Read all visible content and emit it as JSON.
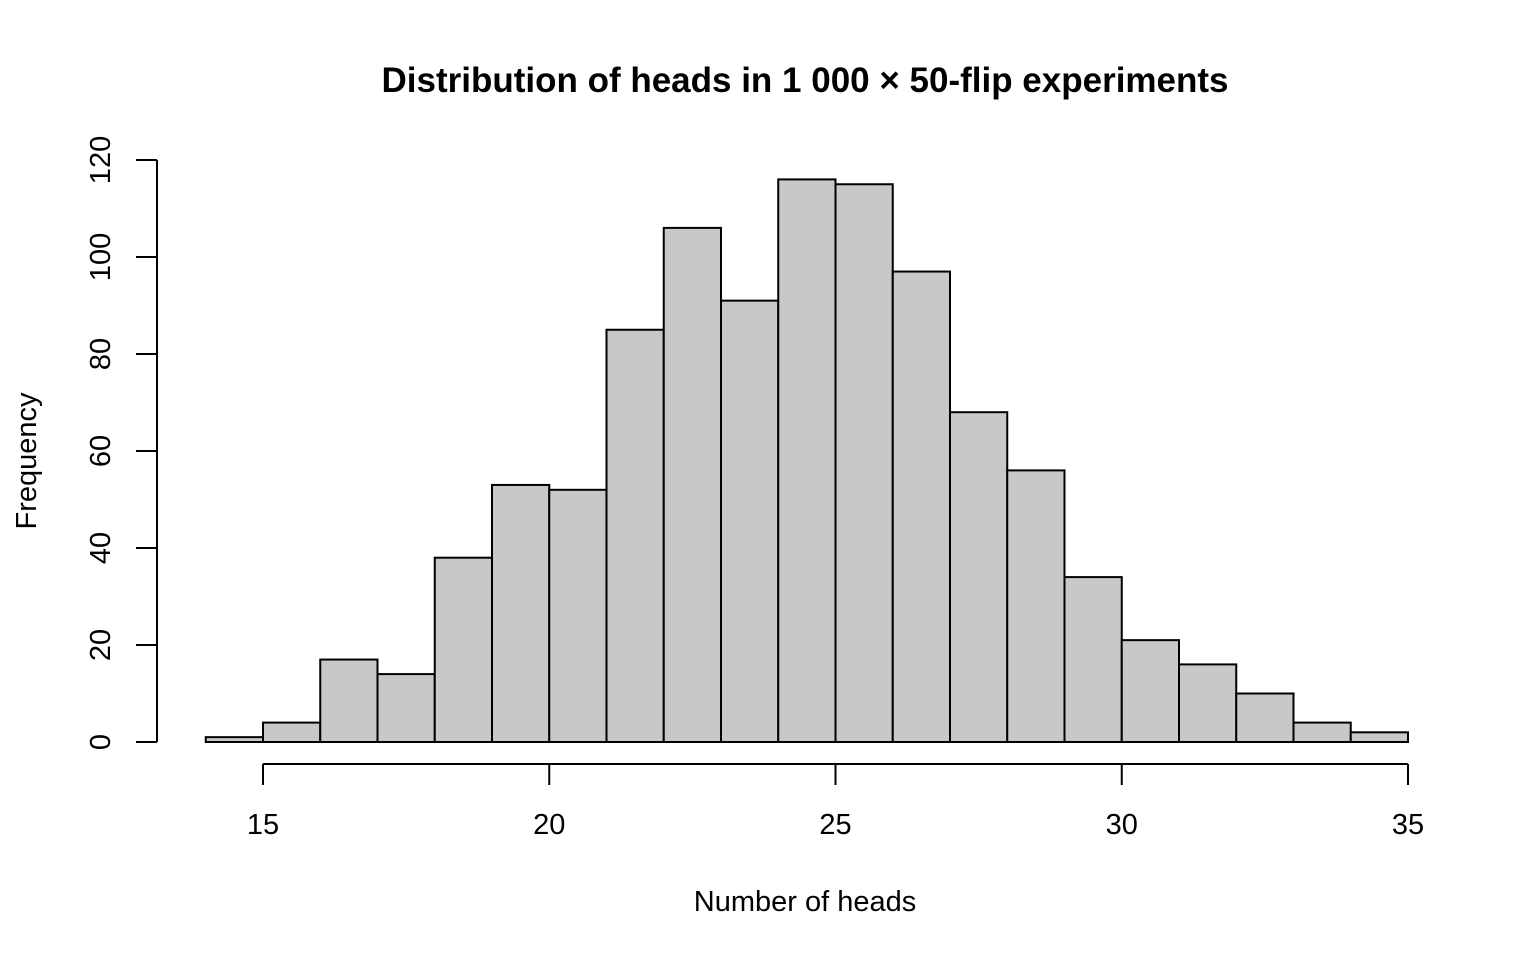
{
  "chart_data": {
    "type": "bar",
    "title": "Distribution of heads in 1 000 × 50-flip experiments",
    "xlabel": "Number of heads",
    "ylabel": "Frequency",
    "xlim": [
      14,
      35
    ],
    "ylim": [
      0,
      120
    ],
    "x_ticks": [
      15,
      20,
      25,
      30,
      35
    ],
    "y_ticks": [
      0,
      20,
      40,
      60,
      80,
      100,
      120
    ],
    "bin_edges": [
      14,
      15,
      16,
      17,
      18,
      19,
      20,
      21,
      22,
      23,
      24,
      25,
      26,
      27,
      28,
      29,
      30,
      31,
      32,
      33,
      34,
      35
    ],
    "values": [
      1,
      4,
      17,
      14,
      38,
      53,
      52,
      85,
      106,
      91,
      116,
      115,
      97,
      68,
      56,
      34,
      21,
      16,
      10,
      4,
      2
    ],
    "bar_color": "#c8c8c8",
    "grid": false,
    "legend": "none"
  }
}
